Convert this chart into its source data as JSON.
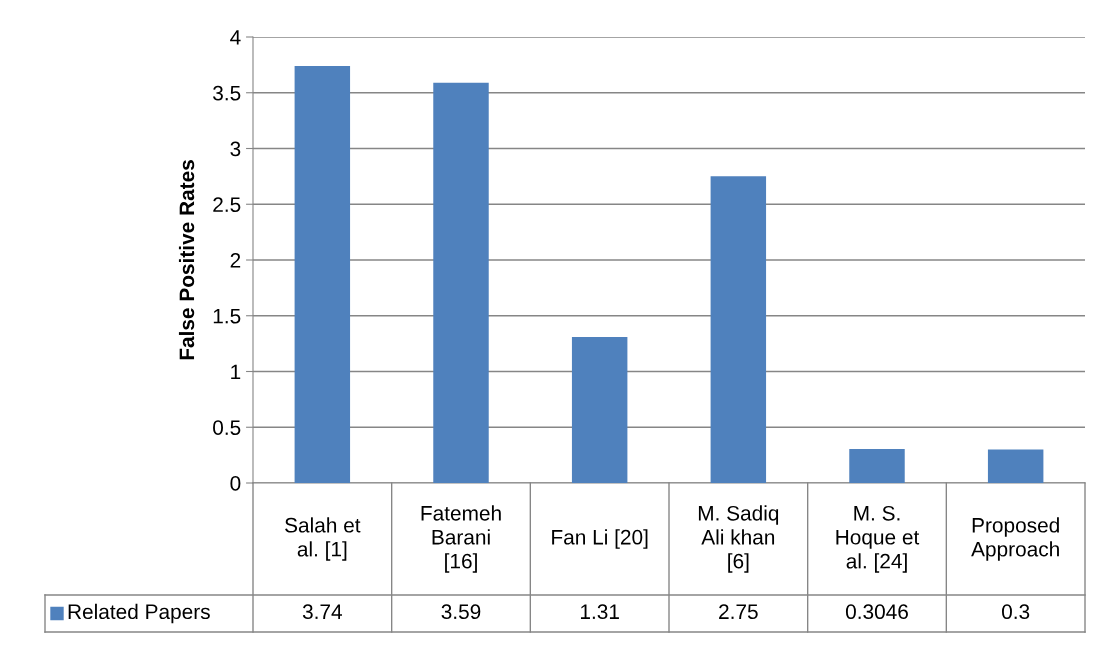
{
  "chart_data": {
    "type": "bar",
    "ylabel": "False Positive Rates",
    "categories": [
      "Salah et\nal. [1]",
      "Fatemeh\nBarani\n[16]",
      "Fan Li [20]",
      "M. Sadiq\nAli khan\n[6]",
      "M. S.\nHoque et\nal. [24]",
      "Proposed\nApproach"
    ],
    "series": [
      {
        "name": "Related Papers",
        "color": "#4f81bd",
        "values": [
          3.74,
          3.59,
          1.31,
          2.75,
          0.3046,
          0.3
        ]
      }
    ],
    "value_labels": [
      "3.74",
      "3.59",
      "1.31",
      "2.75",
      "0.3046",
      "0.3"
    ],
    "ylim": [
      0,
      4
    ],
    "yticks": [
      0,
      0.5,
      1,
      1.5,
      2,
      2.5,
      3,
      3.5,
      4
    ],
    "grid": "y"
  }
}
